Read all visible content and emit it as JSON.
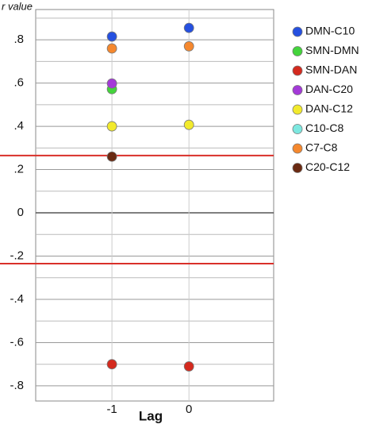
{
  "chart_data": {
    "type": "scatter",
    "y_label": "r value",
    "x_label": "Lag",
    "x": [
      -1,
      0
    ],
    "xlim": [
      -1.99,
      1.1
    ],
    "xticks": [
      -1,
      0
    ],
    "ylim": [
      -0.87,
      0.94
    ],
    "yticks": [
      {
        "value": -0.8,
        "label": "-.8"
      },
      {
        "value": -0.6,
        "label": "-.6"
      },
      {
        "value": -0.4,
        "label": "-.4"
      },
      {
        "value": -0.2,
        "label": "-.2"
      },
      0,
      {
        "value": 0.2,
        "label": ".2"
      },
      {
        "value": 0.4,
        "label": ".4"
      },
      {
        "value": 0.6,
        "label": ".6"
      },
      {
        "value": 0.8,
        "label": ".8"
      }
    ],
    "minor_yticks": [
      -0.7,
      -0.5,
      -0.3,
      -0.1,
      0.1,
      0.3,
      0.5,
      0.7,
      0.9
    ],
    "grid": true,
    "reference_lines": [
      {
        "value": 0.265,
        "color": "#d9302a"
      },
      {
        "value": -0.235,
        "color": "#d9302a"
      }
    ],
    "legend": "right",
    "series": [
      {
        "name": "DMN-C10",
        "color": "#2550e0",
        "values": [
          0.815,
          0.855
        ]
      },
      {
        "name": "SMN-DMN",
        "color": "#44d43c",
        "values": [
          0.572,
          null
        ]
      },
      {
        "name": "SMN-DAN",
        "color": "#d42a1e",
        "values": [
          -0.7,
          -0.71
        ]
      },
      {
        "name": "DAN-C20",
        "color": "#a43ad8",
        "values": [
          0.598,
          null
        ]
      },
      {
        "name": "DAN-C12",
        "color": "#f2ea2c",
        "values": [
          0.4,
          0.407
        ]
      },
      {
        "name": "C10-C8",
        "color": "#7de8e0",
        "values": [
          null,
          null
        ]
      },
      {
        "name": "C7-C8",
        "color": "#f5882e",
        "values": [
          0.76,
          0.77
        ]
      },
      {
        "name": "C20-C12",
        "color": "#6a2a12",
        "values": [
          0.26,
          null
        ]
      }
    ]
  }
}
